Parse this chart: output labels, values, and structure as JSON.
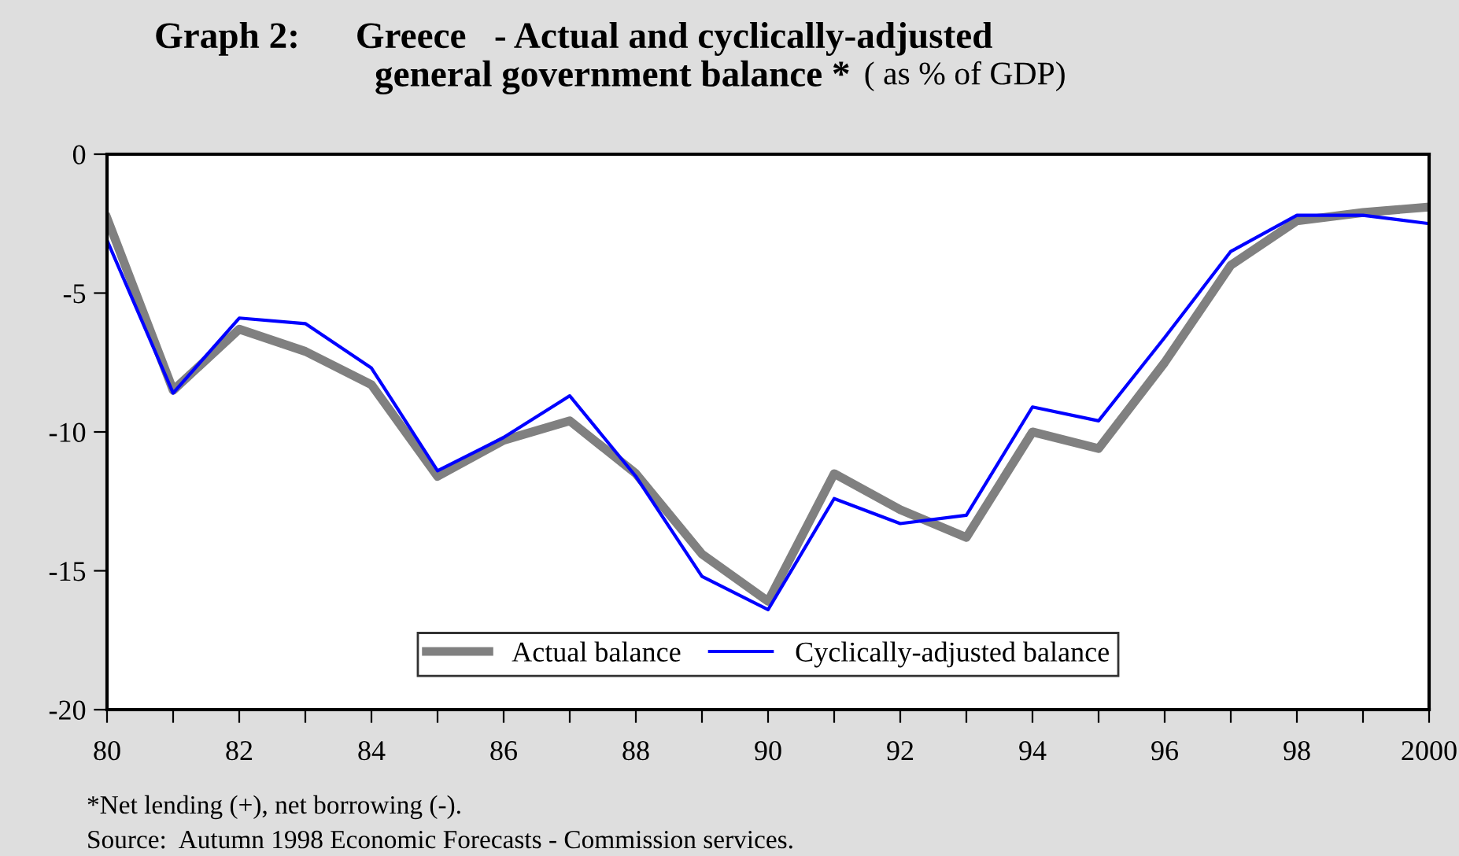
{
  "chart_data": {
    "type": "line",
    "title": "Graph 2:      Greece   - Actual and cyclically-adjusted\ngeneral government balance *",
    "subtitle": "( as % of GDP)",
    "annotations": [
      "*Net lending (+), net borrowing (-).",
      "Source:  Autumn 1998 Economic Forecasts - Commission services."
    ],
    "x": [
      1980,
      1981,
      1982,
      1983,
      1984,
      1985,
      1986,
      1987,
      1988,
      1989,
      1990,
      1991,
      1992,
      1993,
      1994,
      1995,
      1996,
      1997,
      1998,
      1999,
      2000
    ],
    "series": [
      {
        "name": "Actual balance",
        "color": "#808080",
        "values": [
          -2.3,
          -8.5,
          -6.3,
          -7.1,
          -8.3,
          -11.6,
          -10.3,
          -9.6,
          -11.5,
          -14.4,
          -16.1,
          -11.5,
          -12.8,
          -13.8,
          -10.0,
          -10.6,
          -7.5,
          -4.0,
          -2.4,
          -2.1,
          -1.9
        ]
      },
      {
        "name": "Cyclically-adjusted balance",
        "color": "#0000ff",
        "values": [
          -3.1,
          -8.6,
          -5.9,
          -6.1,
          -7.7,
          -11.4,
          -10.2,
          -8.7,
          -11.6,
          -15.2,
          -16.4,
          -12.4,
          -13.3,
          -13.0,
          -9.1,
          -9.6,
          -6.6,
          -3.5,
          -2.2,
          -2.2,
          -2.5
        ]
      }
    ],
    "xlim": [
      1980,
      2000
    ],
    "xticks": [
      {
        "value": 1980,
        "label": "80"
      },
      {
        "value": 1981,
        "label": null
      },
      {
        "value": 1982,
        "label": "82"
      },
      {
        "value": 1983,
        "label": null
      },
      {
        "value": 1984,
        "label": "84"
      },
      {
        "value": 1985,
        "label": null
      },
      {
        "value": 1986,
        "label": "86"
      },
      {
        "value": 1987,
        "label": null
      },
      {
        "value": 1988,
        "label": "88"
      },
      {
        "value": 1989,
        "label": null
      },
      {
        "value": 1990,
        "label": "90"
      },
      {
        "value": 1991,
        "label": null
      },
      {
        "value": 1992,
        "label": "92"
      },
      {
        "value": 1993,
        "label": null
      },
      {
        "value": 1994,
        "label": "94"
      },
      {
        "value": 1995,
        "label": null
      },
      {
        "value": 1996,
        "label": "96"
      },
      {
        "value": 1997,
        "label": null
      },
      {
        "value": 1998,
        "label": "98"
      },
      {
        "value": 1999,
        "label": null
      },
      {
        "value": 2000,
        "label": "2000"
      }
    ],
    "ylim": [
      -20,
      0
    ],
    "yticks": [
      -20,
      -15,
      -10,
      -5,
      0
    ],
    "grid": false,
    "legend": "bottom",
    "marker": "none",
    "line_style": "solid"
  }
}
